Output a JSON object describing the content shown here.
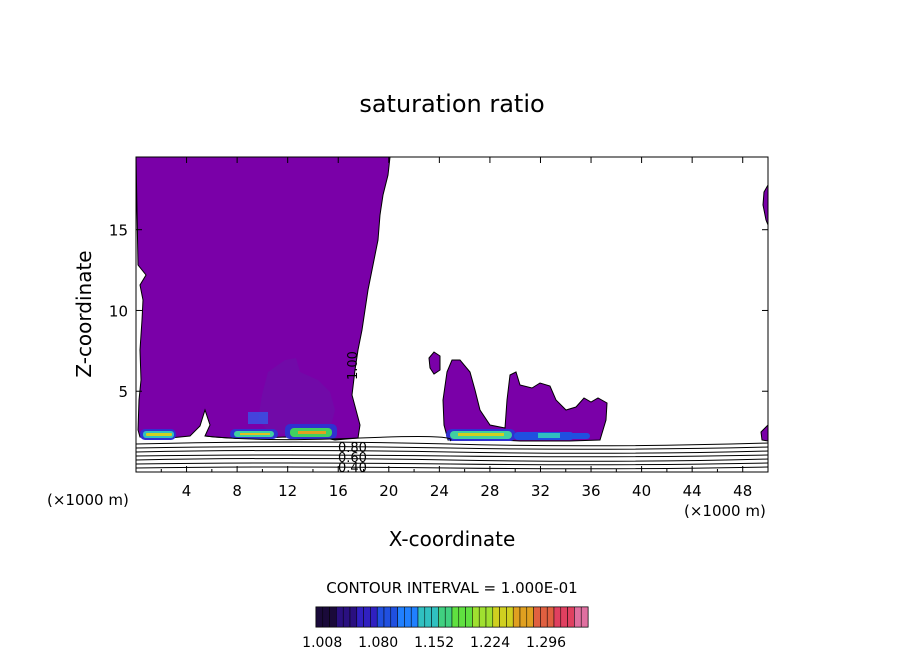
{
  "chart_data": {
    "type": "contour",
    "title": "saturation ratio",
    "xlabel": "X-coordinate",
    "ylabel": "Z-coordinate",
    "x_unit_label": "(×1000 m)",
    "z_unit_label": "(×1000 m)",
    "xlim": [
      0,
      50
    ],
    "ylim": [
      0,
      19.5
    ],
    "xticks": [
      "4",
      "8",
      "12",
      "16",
      "20",
      "24",
      "28",
      "32",
      "36",
      "40",
      "44",
      "48"
    ],
    "yticks": [
      "5",
      "10",
      "15"
    ],
    "contour_interval_text": "CONTOUR INTERVAL = 1.000E-01",
    "contour_labels": [
      "1.00",
      "0.80",
      "0.60",
      "0.40"
    ],
    "colorbar": {
      "ticks": [
        "1.008",
        "1.080",
        "1.152",
        "1.224",
        "1.296"
      ],
      "colors": [
        "#1a0a3a",
        "#2a1080",
        "#3020c0",
        "#2050e0",
        "#2080ff",
        "#30c0c0",
        "#40d080",
        "#60e040",
        "#a0e030",
        "#d0d020",
        "#e0a020",
        "#e06040",
        "#e04060",
        "#e070a0"
      ]
    },
    "regions": [
      {
        "name": "supersaturated cloud region (x 0-18 km)",
        "fill": "#7a00a8"
      },
      {
        "name": "supersaturated patch (x 24-36 km)",
        "fill": "#7a00a8"
      },
      {
        "name": "edge patch (x 49-50 km)",
        "fill": "#7a00a8"
      }
    ],
    "grid": false,
    "legend": "colorbar-bottom"
  }
}
